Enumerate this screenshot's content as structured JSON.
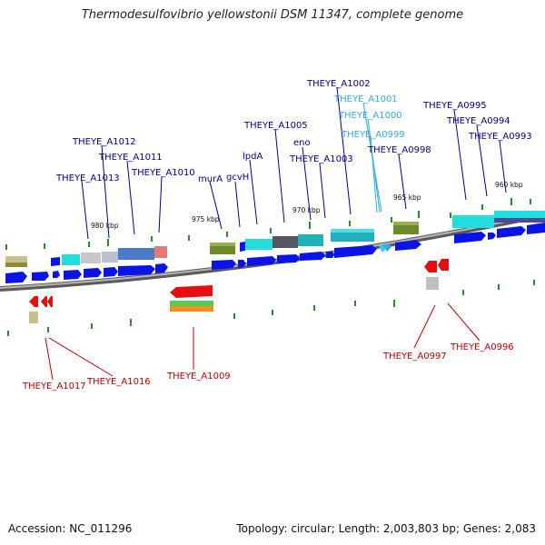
{
  "title": "Thermodesulfovibrio yellowstonii DSM 11347, complete genome",
  "footer": {
    "accession": "Accession: NC_011296",
    "stats": "Topology: circular; Length: 2,003,803 bp; Genes: 2,083"
  },
  "colors": {
    "forward_label": "#00008b",
    "reverse_label": "#c00000",
    "highlight_label": "#33aadd",
    "cds_forward": "#0a14e6",
    "cds_reverse": "#e60f0f",
    "tick": "#2a8a2a",
    "backbone": "#8c8c8c"
  },
  "kbp_ticks": [
    "980 kbp",
    "975 kbp",
    "970 kbp",
    "965 kbp",
    "960 kbp"
  ],
  "gene_labels": [
    {
      "id": "lbl-theye-a1013",
      "text": "THEYE_A1013",
      "strand": "forward"
    },
    {
      "id": "lbl-theye-a1012",
      "text": "THEYE_A1012",
      "strand": "forward"
    },
    {
      "id": "lbl-theye-a1011",
      "text": "THEYE_A1011",
      "strand": "forward"
    },
    {
      "id": "lbl-theye-a1010",
      "text": "THEYE_A1010",
      "strand": "forward"
    },
    {
      "id": "lbl-mura",
      "text": "murA",
      "strand": "forward"
    },
    {
      "id": "lbl-gcvh",
      "text": "gcvH",
      "strand": "forward"
    },
    {
      "id": "lbl-lpda",
      "text": "lpdA",
      "strand": "forward"
    },
    {
      "id": "lbl-theye-a1005",
      "text": "THEYE_A1005",
      "strand": "forward"
    },
    {
      "id": "lbl-eno",
      "text": "eno",
      "strand": "forward"
    },
    {
      "id": "lbl-theye-a1003",
      "text": "THEYE_A1003",
      "strand": "forward"
    },
    {
      "id": "lbl-theye-a1002",
      "text": "THEYE_A1002",
      "strand": "forward"
    },
    {
      "id": "lbl-theye-a1001",
      "text": "THEYE_A1001",
      "strand": "highlight"
    },
    {
      "id": "lbl-theye-a1000",
      "text": "THEYE_A1000",
      "strand": "highlight"
    },
    {
      "id": "lbl-theye-a0999",
      "text": "THEYE_A0999",
      "strand": "highlight"
    },
    {
      "id": "lbl-theye-a0998",
      "text": "THEYE_A0998",
      "strand": "forward"
    },
    {
      "id": "lbl-theye-a0995",
      "text": "THEYE_A0995",
      "strand": "forward"
    },
    {
      "id": "lbl-theye-a0994",
      "text": "THEYE_A0994",
      "strand": "forward"
    },
    {
      "id": "lbl-theye-a0993",
      "text": "THEYE_A0993",
      "strand": "forward"
    },
    {
      "id": "lbl-theye-a1017",
      "text": "THEYE_A1017",
      "strand": "reverse"
    },
    {
      "id": "lbl-theye-a1016",
      "text": "THEYE_A1016",
      "strand": "reverse"
    },
    {
      "id": "lbl-theye-a1009",
      "text": "THEYE_A1009",
      "strand": "reverse"
    },
    {
      "id": "lbl-theye-a0997",
      "text": "THEYE_A0997",
      "strand": "reverse"
    },
    {
      "id": "lbl-theye-a0996",
      "text": "THEYE_A0996",
      "strand": "reverse"
    }
  ]
}
